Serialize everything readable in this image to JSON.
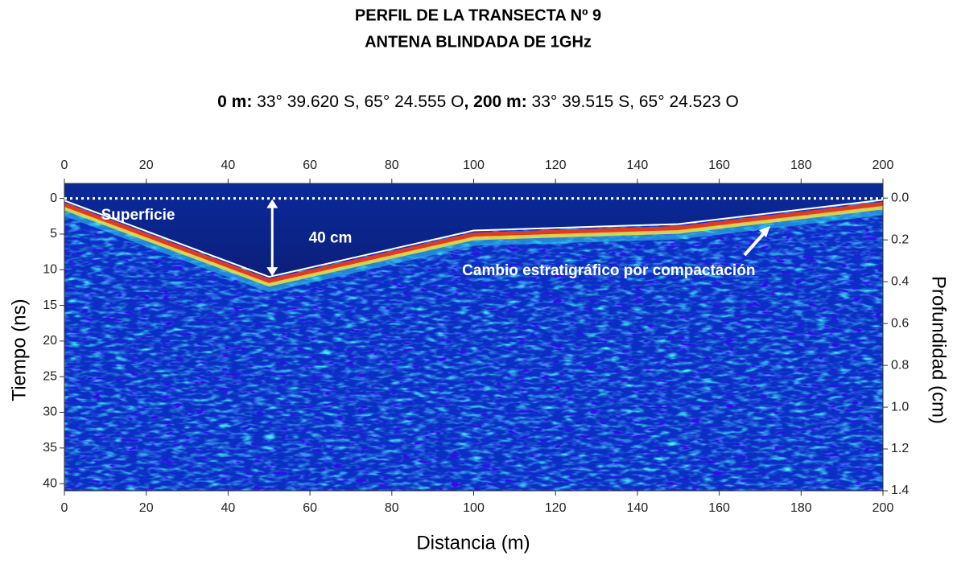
{
  "chart_data": {
    "type": "radargram",
    "title": [
      "PERFIL DE LA TRANSECTA Nº 9",
      "ANTENA BLINDADA DE 1GHz"
    ],
    "subtitle": [
      {
        "text": "0 m:",
        "bold": true
      },
      {
        "text": " 33° 39.620 S, 65° 24.555 O",
        "bold": false
      },
      {
        "text": ", 200 m:",
        "bold": true
      },
      {
        "text": " 33° 39.515 S, 65° 24.523 O",
        "bold": false
      }
    ],
    "x_label": "Distancia (m)",
    "y_label": "Tiempo (ns)",
    "y2_label": "Profundidad (cm)",
    "xlim": [
      0,
      200
    ],
    "xticks": [
      0,
      20,
      40,
      60,
      80,
      100,
      120,
      140,
      160,
      180,
      200
    ],
    "ylim": [
      -2.1,
      41
    ],
    "y_inverted": true,
    "yticks": [
      0,
      5,
      10,
      15,
      20,
      25,
      30,
      35,
      40
    ],
    "y2lim": [
      -0.07,
      1.4
    ],
    "y2ticks": [
      {
        "value": 0,
        "label": "0.0"
      },
      0.2,
      0.4,
      0.6,
      0.8,
      {
        "value": 1,
        "label": "1.0"
      },
      1.2,
      1.4
    ],
    "reflector": {
      "x": [
        0,
        50,
        100,
        150,
        200
      ],
      "values": [
        0.3,
        11,
        4.5,
        3.6,
        0.2
      ]
    },
    "annotations": [
      {
        "text": "Superficie",
        "x": 18,
        "y": 2.4
      },
      {
        "text": "40 cm",
        "x": 65,
        "y": 5.6
      },
      {
        "text": "Cambio estratigráfico por compactación",
        "x": 133,
        "y": 10.2
      }
    ]
  }
}
